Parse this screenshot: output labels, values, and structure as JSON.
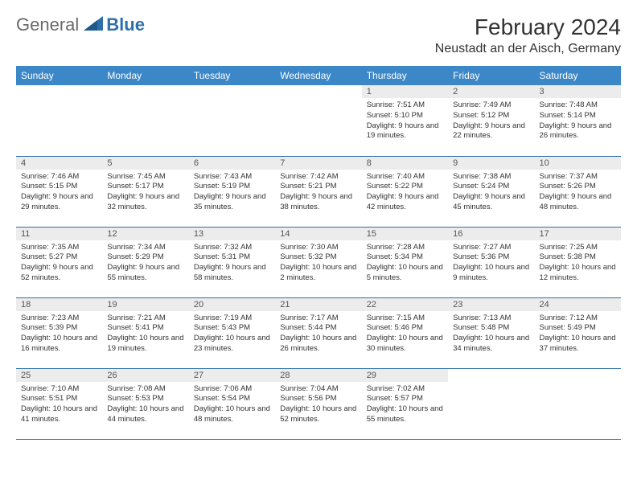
{
  "logo": {
    "general": "General",
    "blue": "Blue"
  },
  "title": "February 2024",
  "location": "Neustadt an der Aisch, Germany",
  "colors": {
    "header_bg": "#3b87c8",
    "header_text": "#ffffff",
    "border": "#2f6fa8",
    "daynum_bg": "#ececec",
    "text": "#333333",
    "logo_general": "#6a6a6a",
    "logo_blue": "#2f6fa8"
  },
  "weekdays": [
    "Sunday",
    "Monday",
    "Tuesday",
    "Wednesday",
    "Thursday",
    "Friday",
    "Saturday"
  ],
  "weeks": [
    [
      null,
      null,
      null,
      null,
      {
        "n": "1",
        "sr": "7:51 AM",
        "ss": "5:10 PM",
        "dl": "9 hours and 19 minutes."
      },
      {
        "n": "2",
        "sr": "7:49 AM",
        "ss": "5:12 PM",
        "dl": "9 hours and 22 minutes."
      },
      {
        "n": "3",
        "sr": "7:48 AM",
        "ss": "5:14 PM",
        "dl": "9 hours and 26 minutes."
      }
    ],
    [
      {
        "n": "4",
        "sr": "7:46 AM",
        "ss": "5:15 PM",
        "dl": "9 hours and 29 minutes."
      },
      {
        "n": "5",
        "sr": "7:45 AM",
        "ss": "5:17 PM",
        "dl": "9 hours and 32 minutes."
      },
      {
        "n": "6",
        "sr": "7:43 AM",
        "ss": "5:19 PM",
        "dl": "9 hours and 35 minutes."
      },
      {
        "n": "7",
        "sr": "7:42 AM",
        "ss": "5:21 PM",
        "dl": "9 hours and 38 minutes."
      },
      {
        "n": "8",
        "sr": "7:40 AM",
        "ss": "5:22 PM",
        "dl": "9 hours and 42 minutes."
      },
      {
        "n": "9",
        "sr": "7:38 AM",
        "ss": "5:24 PM",
        "dl": "9 hours and 45 minutes."
      },
      {
        "n": "10",
        "sr": "7:37 AM",
        "ss": "5:26 PM",
        "dl": "9 hours and 48 minutes."
      }
    ],
    [
      {
        "n": "11",
        "sr": "7:35 AM",
        "ss": "5:27 PM",
        "dl": "9 hours and 52 minutes."
      },
      {
        "n": "12",
        "sr": "7:34 AM",
        "ss": "5:29 PM",
        "dl": "9 hours and 55 minutes."
      },
      {
        "n": "13",
        "sr": "7:32 AM",
        "ss": "5:31 PM",
        "dl": "9 hours and 58 minutes."
      },
      {
        "n": "14",
        "sr": "7:30 AM",
        "ss": "5:32 PM",
        "dl": "10 hours and 2 minutes."
      },
      {
        "n": "15",
        "sr": "7:28 AM",
        "ss": "5:34 PM",
        "dl": "10 hours and 5 minutes."
      },
      {
        "n": "16",
        "sr": "7:27 AM",
        "ss": "5:36 PM",
        "dl": "10 hours and 9 minutes."
      },
      {
        "n": "17",
        "sr": "7:25 AM",
        "ss": "5:38 PM",
        "dl": "10 hours and 12 minutes."
      }
    ],
    [
      {
        "n": "18",
        "sr": "7:23 AM",
        "ss": "5:39 PM",
        "dl": "10 hours and 16 minutes."
      },
      {
        "n": "19",
        "sr": "7:21 AM",
        "ss": "5:41 PM",
        "dl": "10 hours and 19 minutes."
      },
      {
        "n": "20",
        "sr": "7:19 AM",
        "ss": "5:43 PM",
        "dl": "10 hours and 23 minutes."
      },
      {
        "n": "21",
        "sr": "7:17 AM",
        "ss": "5:44 PM",
        "dl": "10 hours and 26 minutes."
      },
      {
        "n": "22",
        "sr": "7:15 AM",
        "ss": "5:46 PM",
        "dl": "10 hours and 30 minutes."
      },
      {
        "n": "23",
        "sr": "7:13 AM",
        "ss": "5:48 PM",
        "dl": "10 hours and 34 minutes."
      },
      {
        "n": "24",
        "sr": "7:12 AM",
        "ss": "5:49 PM",
        "dl": "10 hours and 37 minutes."
      }
    ],
    [
      {
        "n": "25",
        "sr": "7:10 AM",
        "ss": "5:51 PM",
        "dl": "10 hours and 41 minutes."
      },
      {
        "n": "26",
        "sr": "7:08 AM",
        "ss": "5:53 PM",
        "dl": "10 hours and 44 minutes."
      },
      {
        "n": "27",
        "sr": "7:06 AM",
        "ss": "5:54 PM",
        "dl": "10 hours and 48 minutes."
      },
      {
        "n": "28",
        "sr": "7:04 AM",
        "ss": "5:56 PM",
        "dl": "10 hours and 52 minutes."
      },
      {
        "n": "29",
        "sr": "7:02 AM",
        "ss": "5:57 PM",
        "dl": "10 hours and 55 minutes."
      },
      null,
      null
    ]
  ],
  "labels": {
    "sunrise": "Sunrise:",
    "sunset": "Sunset:",
    "daylight": "Daylight:"
  }
}
